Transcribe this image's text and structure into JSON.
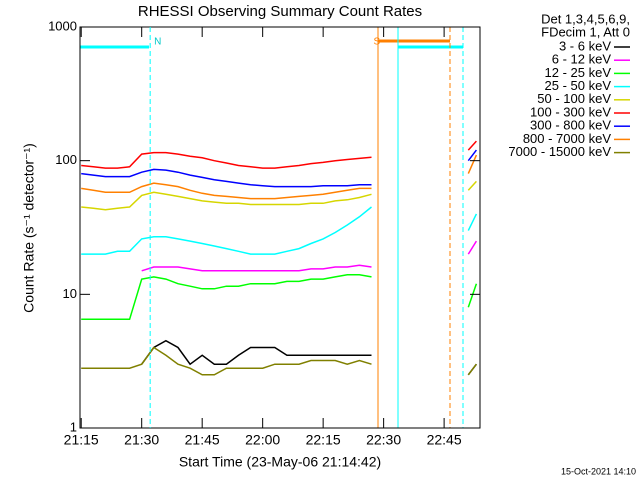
{
  "chart_data": {
    "type": "line",
    "title": "RHESSI Observing Summary Count Rates",
    "x_label": "Start Time (23-May-06 21:14:42)",
    "y_label": "Count Rate (s⁻¹ detector⁻¹)",
    "legend_title": [
      "Det 1,3,4,5,6,9,",
      "FDecim 1, Att 0"
    ],
    "footer": "15-Oct-2021 14:10",
    "log_y": true,
    "legend": "outside-right",
    "xlim": [
      14.7,
      113.9
    ],
    "ylim": [
      1,
      1000
    ],
    "xticks": [
      {
        "value": 15,
        "label": "21:15"
      },
      {
        "value": 30,
        "label": "21:30"
      },
      {
        "value": 45,
        "label": "21:45"
      },
      {
        "value": 60,
        "label": "22:00"
      },
      {
        "value": 75,
        "label": "22:15"
      },
      {
        "value": 90,
        "label": "22:30"
      },
      {
        "value": 105,
        "label": "22:45"
      }
    ],
    "yticks": [
      1,
      10,
      100,
      1000
    ],
    "annotations": [
      {
        "text": "N",
        "x": 32.1
      },
      {
        "text": "S",
        "x": 86.5
      }
    ],
    "x": [
      15,
      18,
      21,
      24,
      27,
      30,
      33,
      36,
      39,
      42,
      45,
      48,
      51,
      54,
      57,
      60,
      63,
      66,
      69,
      72,
      75,
      78,
      81,
      84,
      87,
      90,
      111,
      113
    ],
    "series": [
      {
        "name": "3 - 6 keV",
        "color": "#000000",
        "values": [
          null,
          null,
          null,
          null,
          null,
          3,
          4,
          4.5,
          4,
          3,
          3.5,
          3,
          3,
          3.5,
          4,
          4,
          4,
          3.5,
          3.5,
          3.5,
          3.5,
          3.5,
          3.5,
          3.5,
          3.5,
          null,
          2.5,
          3
        ]
      },
      {
        "name": "6 - 12 keV",
        "color": "#ff00ff",
        "values": [
          null,
          null,
          null,
          null,
          null,
          15,
          16,
          16,
          16,
          15.5,
          15,
          15,
          15,
          15,
          15,
          15,
          15,
          15,
          15,
          15.5,
          15.5,
          16,
          16,
          16.5,
          16,
          null,
          20,
          25
        ]
      },
      {
        "name": "12 - 25 keV",
        "color": "#00ff00",
        "values": [
          6.5,
          6.5,
          6.5,
          6.5,
          6.5,
          13,
          13.5,
          13,
          12,
          11.5,
          11,
          11,
          11.5,
          11.5,
          12,
          12,
          12,
          12.5,
          12.5,
          13,
          13,
          13.5,
          14,
          14,
          13.5,
          null,
          8,
          12
        ]
      },
      {
        "name": "25 - 50 keV",
        "color": "#00ffff",
        "values": [
          20,
          20,
          20,
          21,
          21,
          26,
          27,
          27,
          26,
          25,
          24,
          23,
          22,
          21,
          20,
          20,
          20,
          21,
          22,
          24,
          26,
          29,
          33,
          38,
          45,
          null,
          30,
          40
        ]
      },
      {
        "name": "50 - 100 keV",
        "color": "#d6d600",
        "values": [
          45,
          44,
          43,
          44,
          45,
          55,
          58,
          56,
          54,
          52,
          50,
          49,
          48,
          48,
          47,
          47,
          47,
          47,
          47,
          48,
          48,
          50,
          51,
          53,
          56,
          null,
          60,
          70
        ]
      },
      {
        "name": "100 - 300 keV",
        "color": "#ff0000",
        "values": [
          92,
          90,
          88,
          88,
          90,
          112,
          115,
          115,
          112,
          108,
          105,
          100,
          96,
          92,
          90,
          88,
          88,
          90,
          92,
          95,
          97,
          100,
          102,
          104,
          106,
          null,
          120,
          140
        ]
      },
      {
        "name": "300 - 800 keV",
        "color": "#0000ff",
        "values": [
          80,
          78,
          76,
          76,
          76,
          82,
          86,
          85,
          82,
          78,
          75,
          72,
          70,
          68,
          66,
          65,
          64,
          64,
          64,
          64,
          65,
          65,
          65,
          66,
          66,
          null,
          100,
          120
        ]
      },
      {
        "name": "800 - 7000 keV",
        "color": "#ff8000",
        "values": [
          62,
          60,
          58,
          58,
          58,
          64,
          68,
          66,
          64,
          60,
          57,
          55,
          54,
          53,
          52,
          52,
          52,
          53,
          54,
          55,
          56,
          58,
          60,
          62,
          62,
          null,
          80,
          110
        ]
      },
      {
        "name": "7000 - 15000 keV",
        "color": "#808000",
        "values": [
          2.8,
          2.8,
          2.8,
          2.8,
          2.8,
          3,
          4,
          3.5,
          3,
          2.8,
          2.5,
          2.5,
          2.8,
          2.8,
          2.8,
          2.8,
          3,
          3,
          3,
          3.2,
          3.2,
          3.2,
          3,
          3.2,
          3,
          null,
          2.5,
          3
        ]
      }
    ]
  }
}
